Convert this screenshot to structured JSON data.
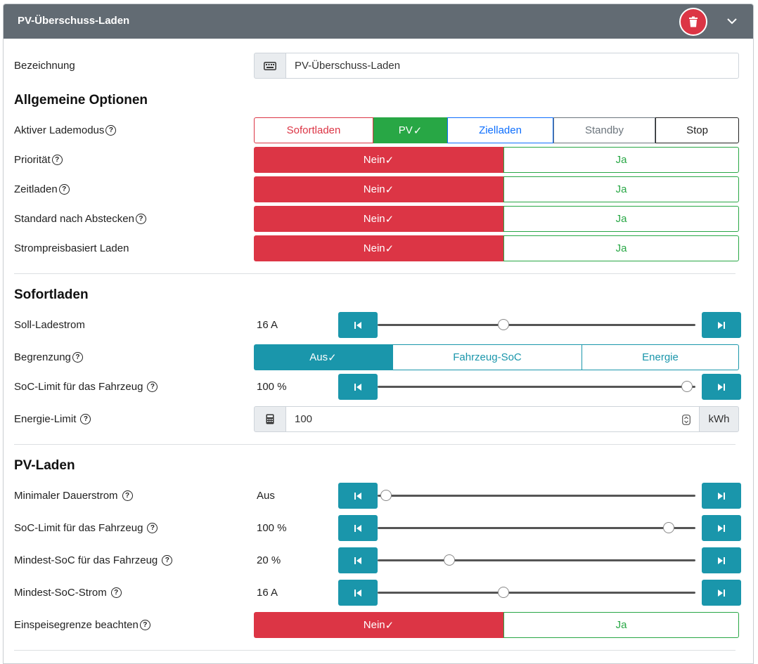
{
  "header": {
    "title": "PV-Überschuss-Laden"
  },
  "colors": {
    "red": "#dc3545",
    "green": "#28a745",
    "teal": "#1a96ab",
    "blue": "#0d6efd",
    "header": "#626b73"
  },
  "bezeichnung": {
    "label": "Bezeichnung",
    "value": "PV-Überschuss-Laden"
  },
  "allgemein": {
    "title": "Allgemeine Optionen",
    "lademodus": {
      "label": "Aktiver Lademodus",
      "options": [
        "Sofortladen",
        "PV",
        "Zielladen",
        "Standby",
        "Stop"
      ],
      "selected": "PV"
    },
    "prioritaet": {
      "label": "Priorität",
      "no": "Nein",
      "yes": "Ja",
      "selected": "Nein"
    },
    "zeitladen": {
      "label": "Zeitladen",
      "no": "Nein",
      "yes": "Ja",
      "selected": "Nein"
    },
    "standard": {
      "label": "Standard nach Abstecken",
      "no": "Nein",
      "yes": "Ja",
      "selected": "Nein"
    },
    "strompreis": {
      "label": "Strompreisbasiert Laden",
      "no": "Nein",
      "yes": "Ja",
      "selected": "Nein"
    }
  },
  "sofortladen": {
    "title": "Sofortladen",
    "soll": {
      "label": "Soll-Ladestrom",
      "value": "16 A",
      "level": 0.39
    },
    "begrenzung": {
      "label": "Begrenzung",
      "options": [
        "Aus",
        "Fahrzeug-SoC",
        "Energie"
      ],
      "selected": "Aus"
    },
    "soc": {
      "label": "SoC-Limit für das Fahrzeug",
      "value": "100 %",
      "level": 1.0
    },
    "energie": {
      "label": "Energie-Limit",
      "value": "100",
      "unit": "kWh"
    }
  },
  "pvladen": {
    "title": "PV-Laden",
    "min_dauer": {
      "label": "Minimaler Dauerstrom",
      "value": "Aus",
      "level": 0.0
    },
    "soc": {
      "label": "SoC-Limit für das Fahrzeug",
      "value": "100 %",
      "level": 0.94
    },
    "mindest_soc": {
      "label": "Mindest-SoC für das Fahrzeug",
      "value": "20 %",
      "level": 0.21
    },
    "mindest_strom": {
      "label": "Mindest-SoC-Strom",
      "value": "16 A",
      "level": 0.39
    },
    "einspeise": {
      "label": "Einspeisegrenze beachten",
      "no": "Nein",
      "yes": "Ja",
      "selected": "Nein"
    }
  }
}
